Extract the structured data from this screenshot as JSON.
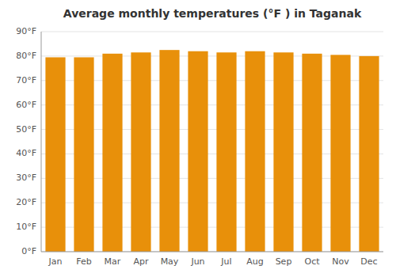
{
  "chart_data": {
    "type": "bar",
    "title": "Average monthly temperatures (°F ) in Taganak",
    "categories": [
      "Jan",
      "Feb",
      "Mar",
      "Apr",
      "May",
      "Jun",
      "Jul",
      "Aug",
      "Sep",
      "Oct",
      "Nov",
      "Dec"
    ],
    "values": [
      79.5,
      79.5,
      81.0,
      81.5,
      82.5,
      82.0,
      81.5,
      82.0,
      81.5,
      81.0,
      80.5,
      80.0
    ],
    "color": "#E8900A",
    "ylim": [
      0,
      90
    ],
    "yticks": [
      {
        "value": 0,
        "label": "0°F"
      },
      {
        "value": 10,
        "label": "10°F"
      },
      {
        "value": 20,
        "label": "20°F"
      },
      {
        "value": 30,
        "label": "30°F"
      },
      {
        "value": 40,
        "label": "40°F"
      },
      {
        "value": 50,
        "label": "50°F"
      },
      {
        "value": 60,
        "label": "60°F"
      },
      {
        "value": 70,
        "label": "70°F"
      },
      {
        "value": 80,
        "label": "80°F"
      },
      {
        "value": 90,
        "label": "90°F"
      }
    ],
    "grid": true
  }
}
